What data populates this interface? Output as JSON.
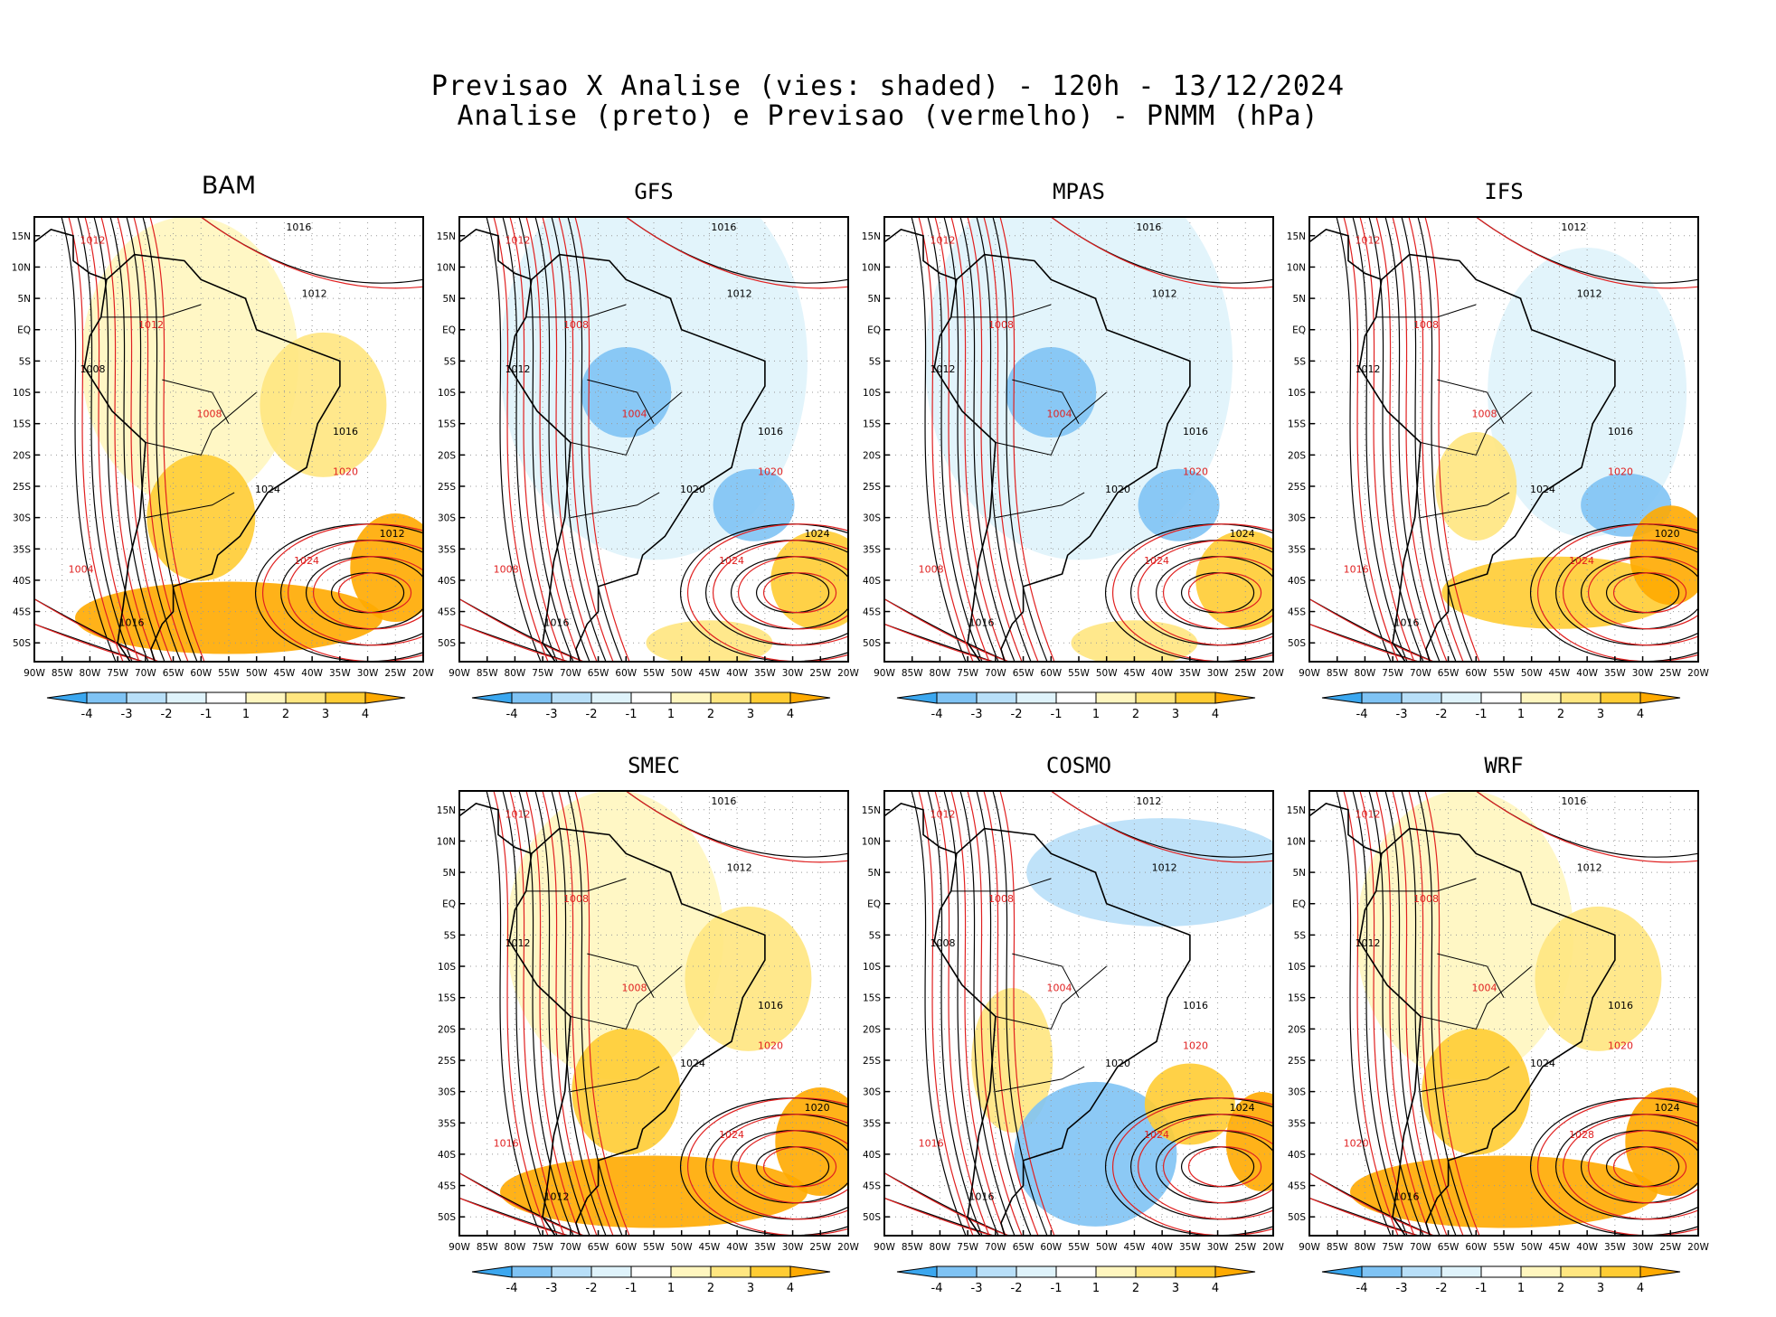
{
  "header": {
    "line1": "Previsao X Analise (vies: shaded) - 120h - 13/12/2024",
    "line2": "Analise (preto) e Previsao (vermelho) - PNMM (hPa)"
  },
  "colors": {
    "neg4": "#3ba7ef",
    "neg3": "#7fc3f4",
    "neg2": "#b8dff8",
    "neg1": "#dff3fb",
    "neutral": "#ffffff",
    "pos1": "#fff6bf",
    "pos2": "#ffe680",
    "pos3": "#ffcc33",
    "pos4": "#ffaa00",
    "analysis_contour": "#000000",
    "forecast_contour": "#e02020"
  },
  "axes": {
    "lat_labels": [
      "15N",
      "10N",
      "5N",
      "EQ",
      "5S",
      "10S",
      "15S",
      "20S",
      "25S",
      "30S",
      "35S",
      "40S",
      "45S",
      "50S"
    ],
    "lon_labels": [
      "90W",
      "85W",
      "80W",
      "75W",
      "70W",
      "65W",
      "60W",
      "55W",
      "50W",
      "45W",
      "40W",
      "35W",
      "30W",
      "25W",
      "20W"
    ]
  },
  "colorbar": {
    "labels": [
      "-4",
      "-3",
      "-2",
      "-1",
      "1",
      "2",
      "3",
      "4"
    ]
  },
  "panels": [
    {
      "name": "BAM",
      "bias": "warm",
      "labels": [
        "1016",
        "1012",
        "1012",
        "1012",
        "1008",
        "1008",
        "1016",
        "1020",
        "1024",
        "1024",
        "1012",
        "1004",
        "1016"
      ]
    },
    {
      "name": "GFS",
      "bias": "cool",
      "labels": [
        "1016",
        "1012",
        "1012",
        "1008",
        "1012",
        "1004",
        "1016",
        "1020",
        "1020",
        "1024",
        "1024",
        "1008",
        "1016"
      ]
    },
    {
      "name": "MPAS",
      "bias": "cool",
      "labels": [
        "1016",
        "1012",
        "1012",
        "1008",
        "1012",
        "1004",
        "1016",
        "1020",
        "1020",
        "1024",
        "1024",
        "1008",
        "1016"
      ]
    },
    {
      "name": "IFS",
      "bias": "mixed",
      "labels": [
        "1012",
        "1012",
        "1012",
        "1008",
        "1012",
        "1008",
        "1016",
        "1020",
        "1024",
        "1024",
        "1020",
        "1016",
        "1016"
      ]
    },
    {
      "name": "SMEC",
      "bias": "warm",
      "labels": [
        "1016",
        "1012",
        "1012",
        "1008",
        "1012",
        "1008",
        "1016",
        "1020",
        "1024",
        "1024",
        "1020",
        "1016",
        "1012"
      ]
    },
    {
      "name": "COSMO",
      "bias": "split",
      "labels": [
        "1012",
        "1012",
        "1012",
        "1008",
        "1008",
        "1004",
        "1016",
        "1020",
        "1020",
        "1024",
        "1024",
        "1016",
        "1016"
      ]
    },
    {
      "name": "WRF",
      "bias": "warm",
      "labels": [
        "1016",
        "1012",
        "1012",
        "1008",
        "1012",
        "1004",
        "1016",
        "1020",
        "1024",
        "1028",
        "1024",
        "1020",
        "1016"
      ]
    }
  ]
}
